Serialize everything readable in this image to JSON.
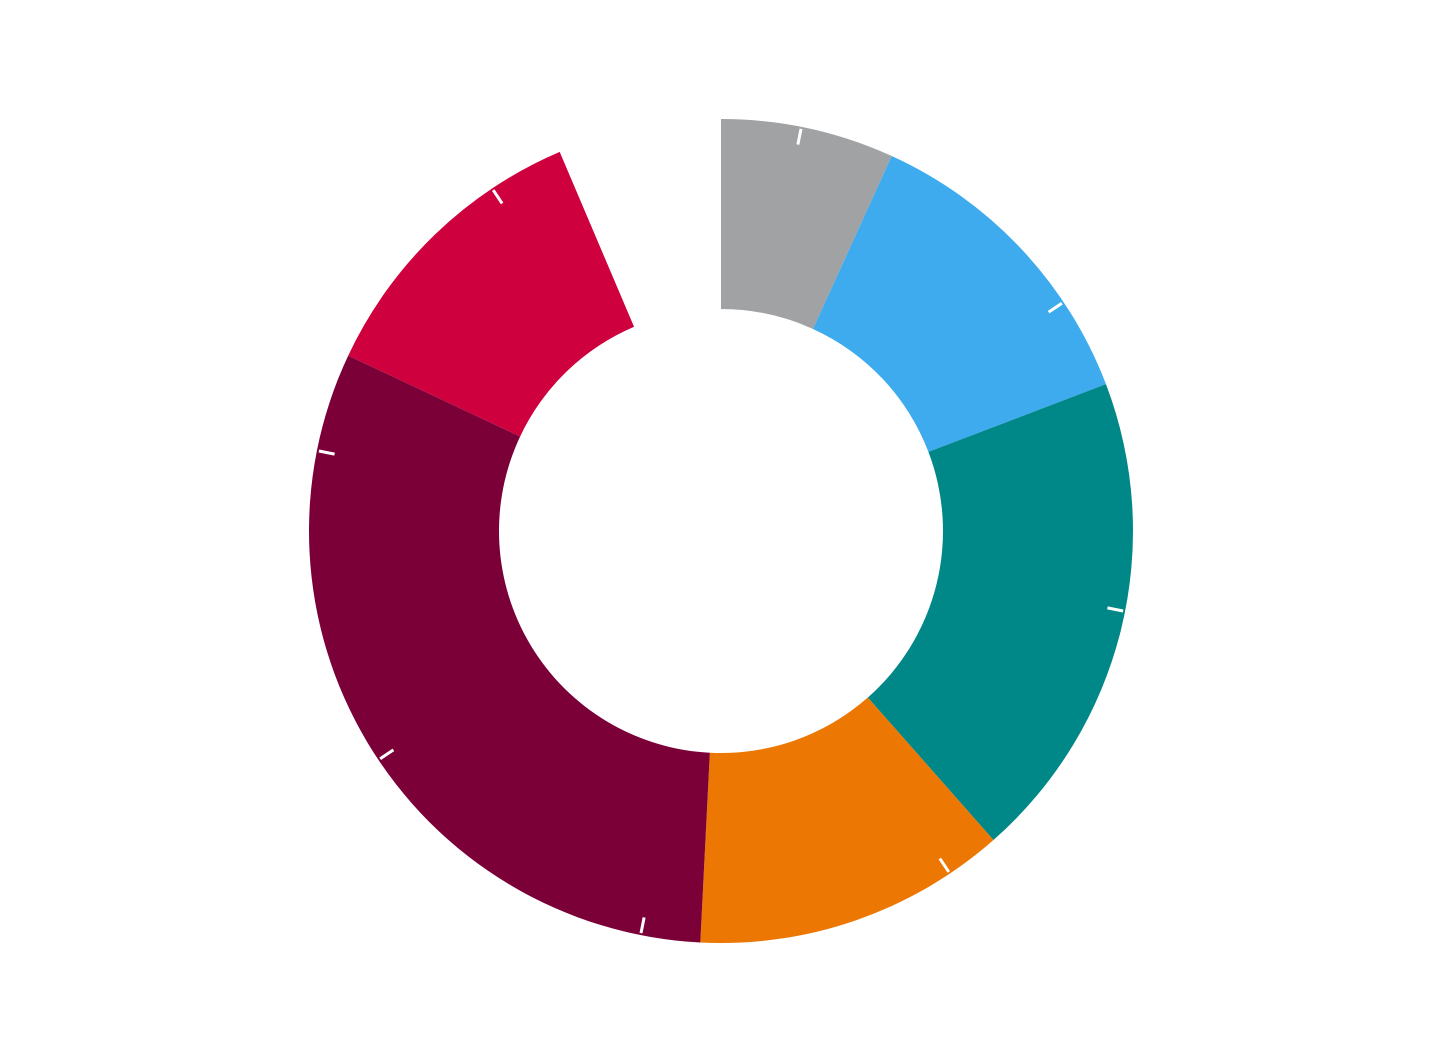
{
  "chart_data": {
    "type": "pie",
    "variant": "donut",
    "title": "",
    "legend": "none",
    "data_labels": "none",
    "start_angle_deg": 0,
    "direction": "clockwise",
    "slices": [
      {
        "value": 6.8,
        "color": "#A1A2A4"
      },
      {
        "value": 12.4,
        "color": "#3DABEE"
      },
      {
        "value": 19.3,
        "color": "#008788"
      },
      {
        "value": 12.3,
        "color": "#EC7703"
      },
      {
        "value": 31.2,
        "color": "#7C0038"
      },
      {
        "value": 11.6,
        "color": "#CE003D"
      },
      {
        "value": 6.4,
        "color": "#FFFFFF"
      }
    ]
  }
}
